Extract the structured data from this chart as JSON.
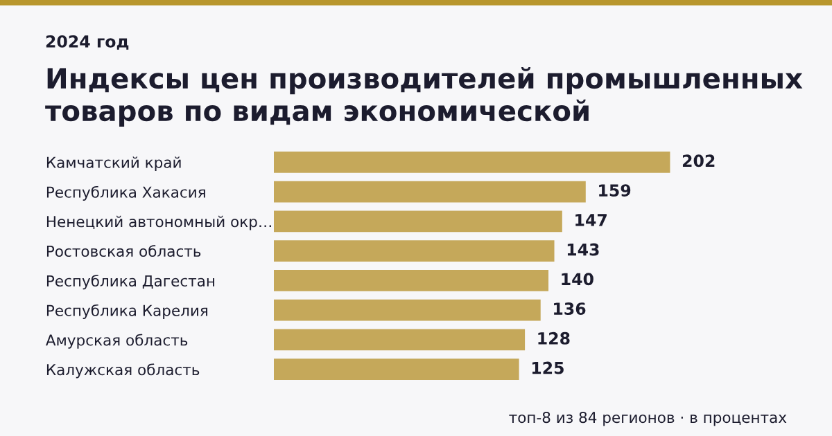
{
  "chart_data": {
    "type": "bar",
    "orientation": "horizontal",
    "subtitle": "2024 год",
    "title": "Индексы цен производителей промышленных\nтоваров по видам экономической",
    "categories": [
      "Камчатский край",
      "Республика Хакасия",
      "Ненецкий автономный окр…",
      "Ростовская область",
      "Республика Дагестан",
      "Республика Карелия",
      "Амурская область",
      "Калужская область"
    ],
    "values": [
      202,
      159,
      147,
      143,
      140,
      136,
      128,
      125
    ],
    "color": "#c5a85a",
    "data_labels": true,
    "tick_labels": "y",
    "grid": false,
    "legend": false,
    "annotations": [
      "топ-8 из 84 регионов · в процентах"
    ]
  }
}
